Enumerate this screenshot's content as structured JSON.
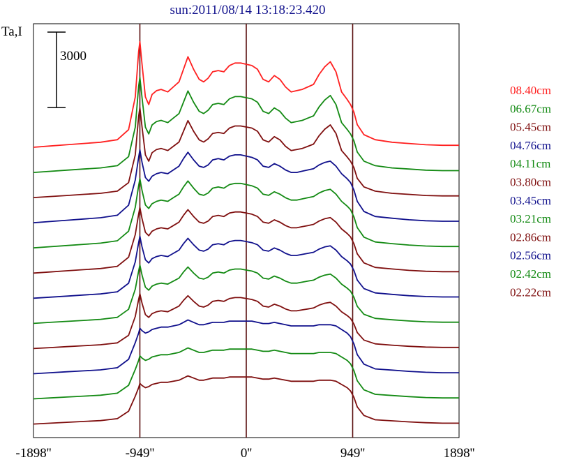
{
  "chart_data": {
    "type": "line",
    "title": "sun:2011/08/14 13:18:23.420",
    "ylabel": "Ta,I",
    "scale_bar_label": "3000",
    "scale_bar_value": 3000,
    "xlim": [
      -1898,
      1898
    ],
    "x_ticks": [
      {
        "value": -1898,
        "label": "-1898''"
      },
      {
        "value": -949,
        "label": "-949''"
      },
      {
        "value": 0,
        "label": "0''"
      },
      {
        "value": 949,
        "label": "949''"
      },
      {
        "value": 1898,
        "label": "1898''"
      }
    ],
    "vertical_lines": [
      -949,
      0,
      949
    ],
    "x": [
      -1898,
      -1750,
      -1600,
      -1450,
      -1300,
      -1150,
      -1050,
      -990,
      -960,
      -949,
      -930,
      -900,
      -870,
      -840,
      -800,
      -760,
      -700,
      -650,
      -600,
      -560,
      -520,
      -470,
      -420,
      -380,
      -340,
      -300,
      -250,
      -200,
      -150,
      -100,
      -50,
      0,
      50,
      100,
      150,
      200,
      250,
      300,
      350,
      400,
      450,
      500,
      550,
      600,
      650,
      700,
      750,
      800,
      850,
      900,
      930,
      960,
      990,
      1050,
      1150,
      1300,
      1450,
      1600,
      1750,
      1898
    ],
    "shapes": {
      "peaked": [
        0,
        50,
        100,
        150,
        200,
        300,
        700,
        2000,
        3800,
        4200,
        3300,
        2000,
        1700,
        2100,
        2250,
        2300,
        2200,
        2400,
        2600,
        3100,
        3600,
        3100,
        2700,
        2600,
        2750,
        3000,
        3050,
        3000,
        3250,
        3350,
        3350,
        3300,
        3250,
        3100,
        2700,
        2600,
        2850,
        2700,
        2400,
        2200,
        2250,
        2300,
        2400,
        2500,
        2900,
        3200,
        3400,
        3000,
        2200,
        1900,
        1700,
        1400,
        900,
        500,
        300,
        200,
        150,
        100,
        80,
        80
      ],
      "medium": [
        0,
        50,
        100,
        150,
        200,
        300,
        700,
        1700,
        2600,
        2900,
        2400,
        1800,
        1650,
        1850,
        1950,
        2000,
        1950,
        2100,
        2250,
        2550,
        2800,
        2500,
        2250,
        2200,
        2300,
        2500,
        2550,
        2500,
        2650,
        2700,
        2700,
        2650,
        2600,
        2500,
        2250,
        2200,
        2350,
        2250,
        2100,
        2000,
        2000,
        2050,
        2100,
        2150,
        2300,
        2400,
        2450,
        2250,
        1950,
        1750,
        1600,
        1300,
        850,
        450,
        250,
        180,
        120,
        80,
        60,
        60
      ],
      "flat": [
        0,
        40,
        80,
        120,
        160,
        250,
        600,
        1300,
        1700,
        1900,
        1800,
        1700,
        1750,
        1850,
        1900,
        1950,
        1950,
        2000,
        2050,
        2150,
        2250,
        2150,
        2050,
        2050,
        2100,
        2150,
        2150,
        2150,
        2200,
        2200,
        2200,
        2200,
        2200,
        2150,
        2100,
        2100,
        2150,
        2100,
        2050,
        2000,
        2000,
        2000,
        2000,
        2000,
        2050,
        2050,
        2050,
        2000,
        1850,
        1700,
        1550,
        1250,
        800,
        400,
        200,
        150,
        100,
        60,
        40,
        40
      ]
    },
    "series": [
      {
        "name": "08.40cm",
        "color": "#ff2020",
        "baseline": 0,
        "shape": "peaked",
        "scale": 1.0
      },
      {
        "name": "06.67cm",
        "color": "#138a13",
        "baseline": -1000,
        "shape": "peaked",
        "scale": 0.9
      },
      {
        "name": "05.45cm",
        "color": "#7f0f0f",
        "baseline": -2000,
        "shape": "peaked",
        "scale": 0.85
      },
      {
        "name": "04.76cm",
        "color": "#10108c",
        "baseline": -3000,
        "shape": "medium",
        "scale": 1.0
      },
      {
        "name": "04.11cm",
        "color": "#138a13",
        "baseline": -4000,
        "shape": "medium",
        "scale": 0.95
      },
      {
        "name": "03.80cm",
        "color": "#7f0f0f",
        "baseline": -5000,
        "shape": "medium",
        "scale": 0.9
      },
      {
        "name": "03.45cm",
        "color": "#10108c",
        "baseline": -6000,
        "shape": "medium",
        "scale": 0.85
      },
      {
        "name": "03.21cm",
        "color": "#138a13",
        "baseline": -7000,
        "shape": "medium",
        "scale": 0.8
      },
      {
        "name": "02.86cm",
        "color": "#7f0f0f",
        "baseline": -8000,
        "shape": "medium",
        "scale": 0.75
      },
      {
        "name": "02.56cm",
        "color": "#10108c",
        "baseline": -9000,
        "shape": "flat",
        "scale": 0.95
      },
      {
        "name": "02.42cm",
        "color": "#138a13",
        "baseline": -10000,
        "shape": "flat",
        "scale": 0.9
      },
      {
        "name": "02.22cm",
        "color": "#7f0f0f",
        "baseline": -11000,
        "shape": "flat",
        "scale": 0.85
      }
    ],
    "ylim": [
      -11400,
      4800
    ],
    "grid": false,
    "legend_position": "right"
  }
}
